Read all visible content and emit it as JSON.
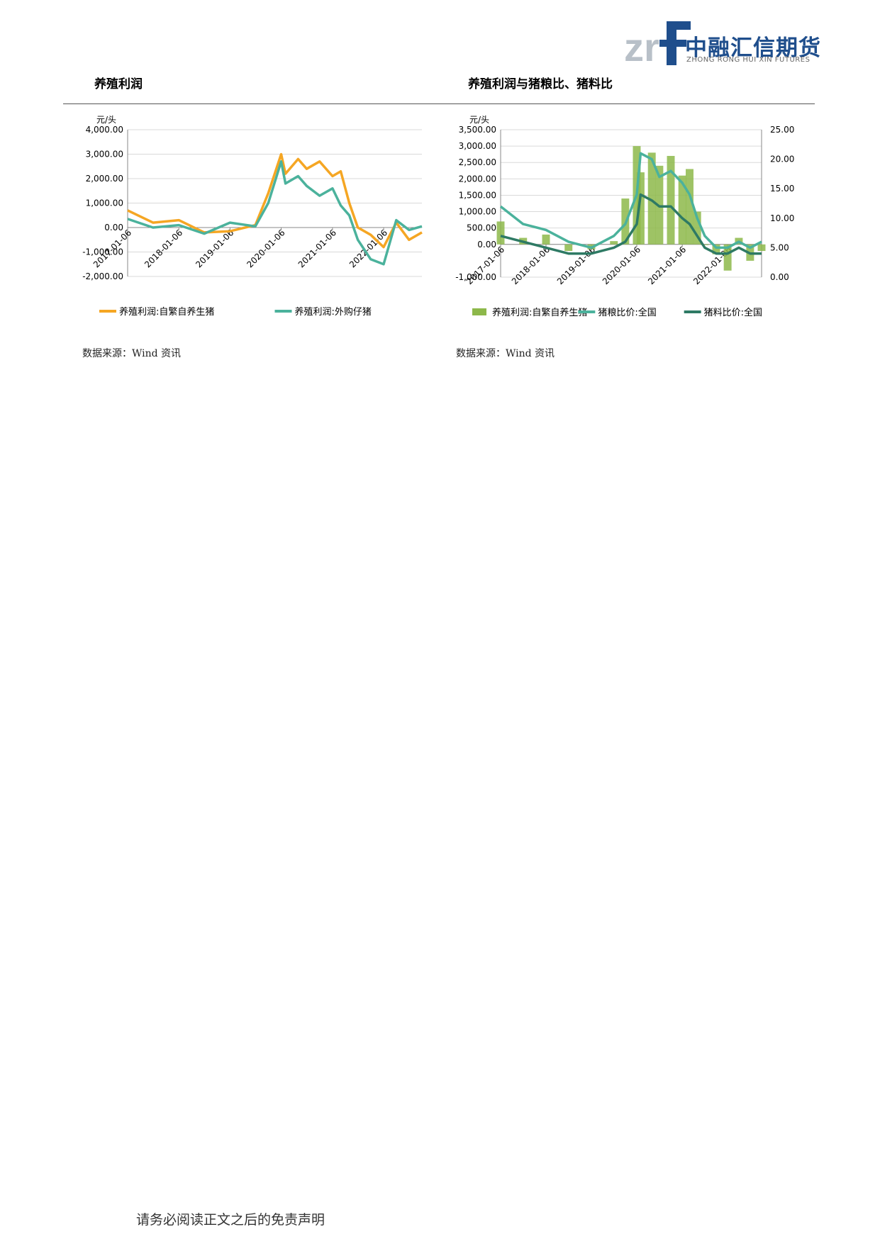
{
  "header": {
    "logo_mark": "zrf",
    "logo_cn": "中融汇信期货",
    "logo_en": "ZHONG RONG HUI XIN FUTURES"
  },
  "section1": {
    "title": "养殖利润",
    "source": "数据来源：Wind 资讯"
  },
  "section2": {
    "title": "养殖利润与猪粮比、猪料比",
    "source": "数据来源：Wind 资讯"
  },
  "footer": {
    "disclaimer": "请务必阅读正文之后的免责声明"
  },
  "colors": {
    "orange": "#f5a623",
    "teal": "#4bb29c",
    "dark_teal": "#2e7a64",
    "bar_green": "#8db84a"
  },
  "chart_data": [
    {
      "type": "line",
      "title": "",
      "ylabel": "元/头",
      "ylim": [
        -2000,
        4000
      ],
      "yticks": [
        "4,000.00",
        "3,000.00",
        "2,000.00",
        "1,000.00",
        "0.00",
        "-1,000.00",
        "-2,000.00"
      ],
      "x": [
        "2017-01-06",
        "2017-07-06",
        "2018-01-06",
        "2018-07-06",
        "2019-01-06",
        "2019-07-06",
        "2019-10-06",
        "2020-01-06",
        "2020-02-06",
        "2020-05-06",
        "2020-07-06",
        "2020-10-06",
        "2021-01-06",
        "2021-03-06",
        "2021-05-06",
        "2021-07-06",
        "2021-10-06",
        "2022-01-06",
        "2022-04-06",
        "2022-07-06",
        "2022-10-06"
      ],
      "xticks": [
        "2017-01-06",
        "2018-01-06",
        "2019-01-06",
        "2020-01-06",
        "2021-01-06",
        "2022-01-06"
      ],
      "legend_position": "bottom",
      "series": [
        {
          "name": "养殖利润:自繁自养生猪",
          "color": "#f5a623",
          "values": [
            700,
            200,
            300,
            -200,
            -150,
            100,
            1400,
            3000,
            2200,
            2800,
            2400,
            2700,
            2100,
            2300,
            1000,
            0,
            -300,
            -800,
            200,
            -500,
            -200
          ]
        },
        {
          "name": "养殖利润:外购仔猪",
          "color": "#4bb29c",
          "values": [
            350,
            0,
            100,
            -250,
            200,
            50,
            1000,
            2700,
            1800,
            2100,
            1700,
            1300,
            1600,
            900,
            500,
            -500,
            -1300,
            -1500,
            300,
            -100,
            50
          ]
        }
      ]
    },
    {
      "type": "line",
      "title": "",
      "ylabel": "元/头",
      "ylim": [
        -1000,
        3500
      ],
      "y2lim": [
        0,
        25
      ],
      "yticks": [
        "3,500.00",
        "3,000.00",
        "2,500.00",
        "2,000.00",
        "1,500.00",
        "1,000.00",
        "500.00",
        "0.00",
        "-1,000.00"
      ],
      "y2ticks": [
        "25.00",
        "20.00",
        "15.00",
        "10.00",
        "5.00",
        "0.00"
      ],
      "x": [
        "2017-01-06",
        "2017-07-06",
        "2018-01-06",
        "2018-07-06",
        "2019-01-06",
        "2019-07-06",
        "2019-10-06",
        "2020-01-06",
        "2020-02-06",
        "2020-05-06",
        "2020-07-06",
        "2020-10-06",
        "2021-01-06",
        "2021-03-06",
        "2021-05-06",
        "2021-07-06",
        "2021-10-06",
        "2022-01-06",
        "2022-04-06",
        "2022-07-06",
        "2022-10-06"
      ],
      "xticks": [
        "2017-01-06",
        "2018-01-06",
        "2019-01-06",
        "2020-01-06",
        "2021-01-06",
        "2022-01-06"
      ],
      "legend_position": "bottom",
      "series": [
        {
          "name": "养殖利润:自繁自养生猪",
          "type": "bar",
          "axis": "left",
          "color": "#8db84a",
          "values": [
            700,
            200,
            300,
            -200,
            -150,
            100,
            1400,
            3000,
            2200,
            2800,
            2400,
            2700,
            2100,
            2300,
            1000,
            0,
            -300,
            -800,
            200,
            -500,
            -200
          ]
        },
        {
          "name": "猪粮比价:全国",
          "type": "line",
          "axis": "right",
          "color": "#4bb29c",
          "values": [
            12,
            9,
            8,
            6,
            5,
            7,
            9,
            14,
            21,
            20,
            17,
            18,
            16,
            14,
            10,
            7,
            5,
            5,
            6,
            5,
            6
          ]
        },
        {
          "name": "猪料比价:全国",
          "type": "line",
          "axis": "right",
          "color": "#2e7a64",
          "values": [
            7,
            6,
            5,
            4,
            4,
            5,
            6,
            9,
            14,
            13,
            12,
            12,
            10,
            9,
            7,
            5,
            4,
            4,
            5,
            4,
            4
          ]
        }
      ]
    }
  ]
}
